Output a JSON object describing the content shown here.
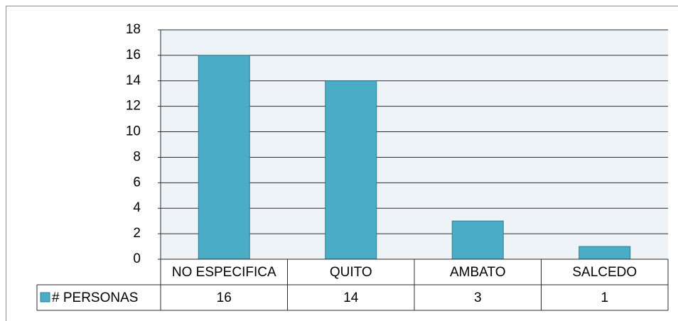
{
  "chart_data": {
    "type": "bar",
    "categories": [
      "NO ESPECIFICA",
      "QUITO",
      "AMBATO",
      "SALCEDO"
    ],
    "series": [
      {
        "name": "# PERSONAS",
        "color": "#4bacc6",
        "values": [
          16,
          14,
          3,
          1
        ]
      }
    ],
    "ylim": [
      0,
      18
    ],
    "yticks": [
      0,
      2,
      4,
      6,
      8,
      10,
      12,
      14,
      16,
      18
    ],
    "grid": true,
    "data_table": true
  }
}
